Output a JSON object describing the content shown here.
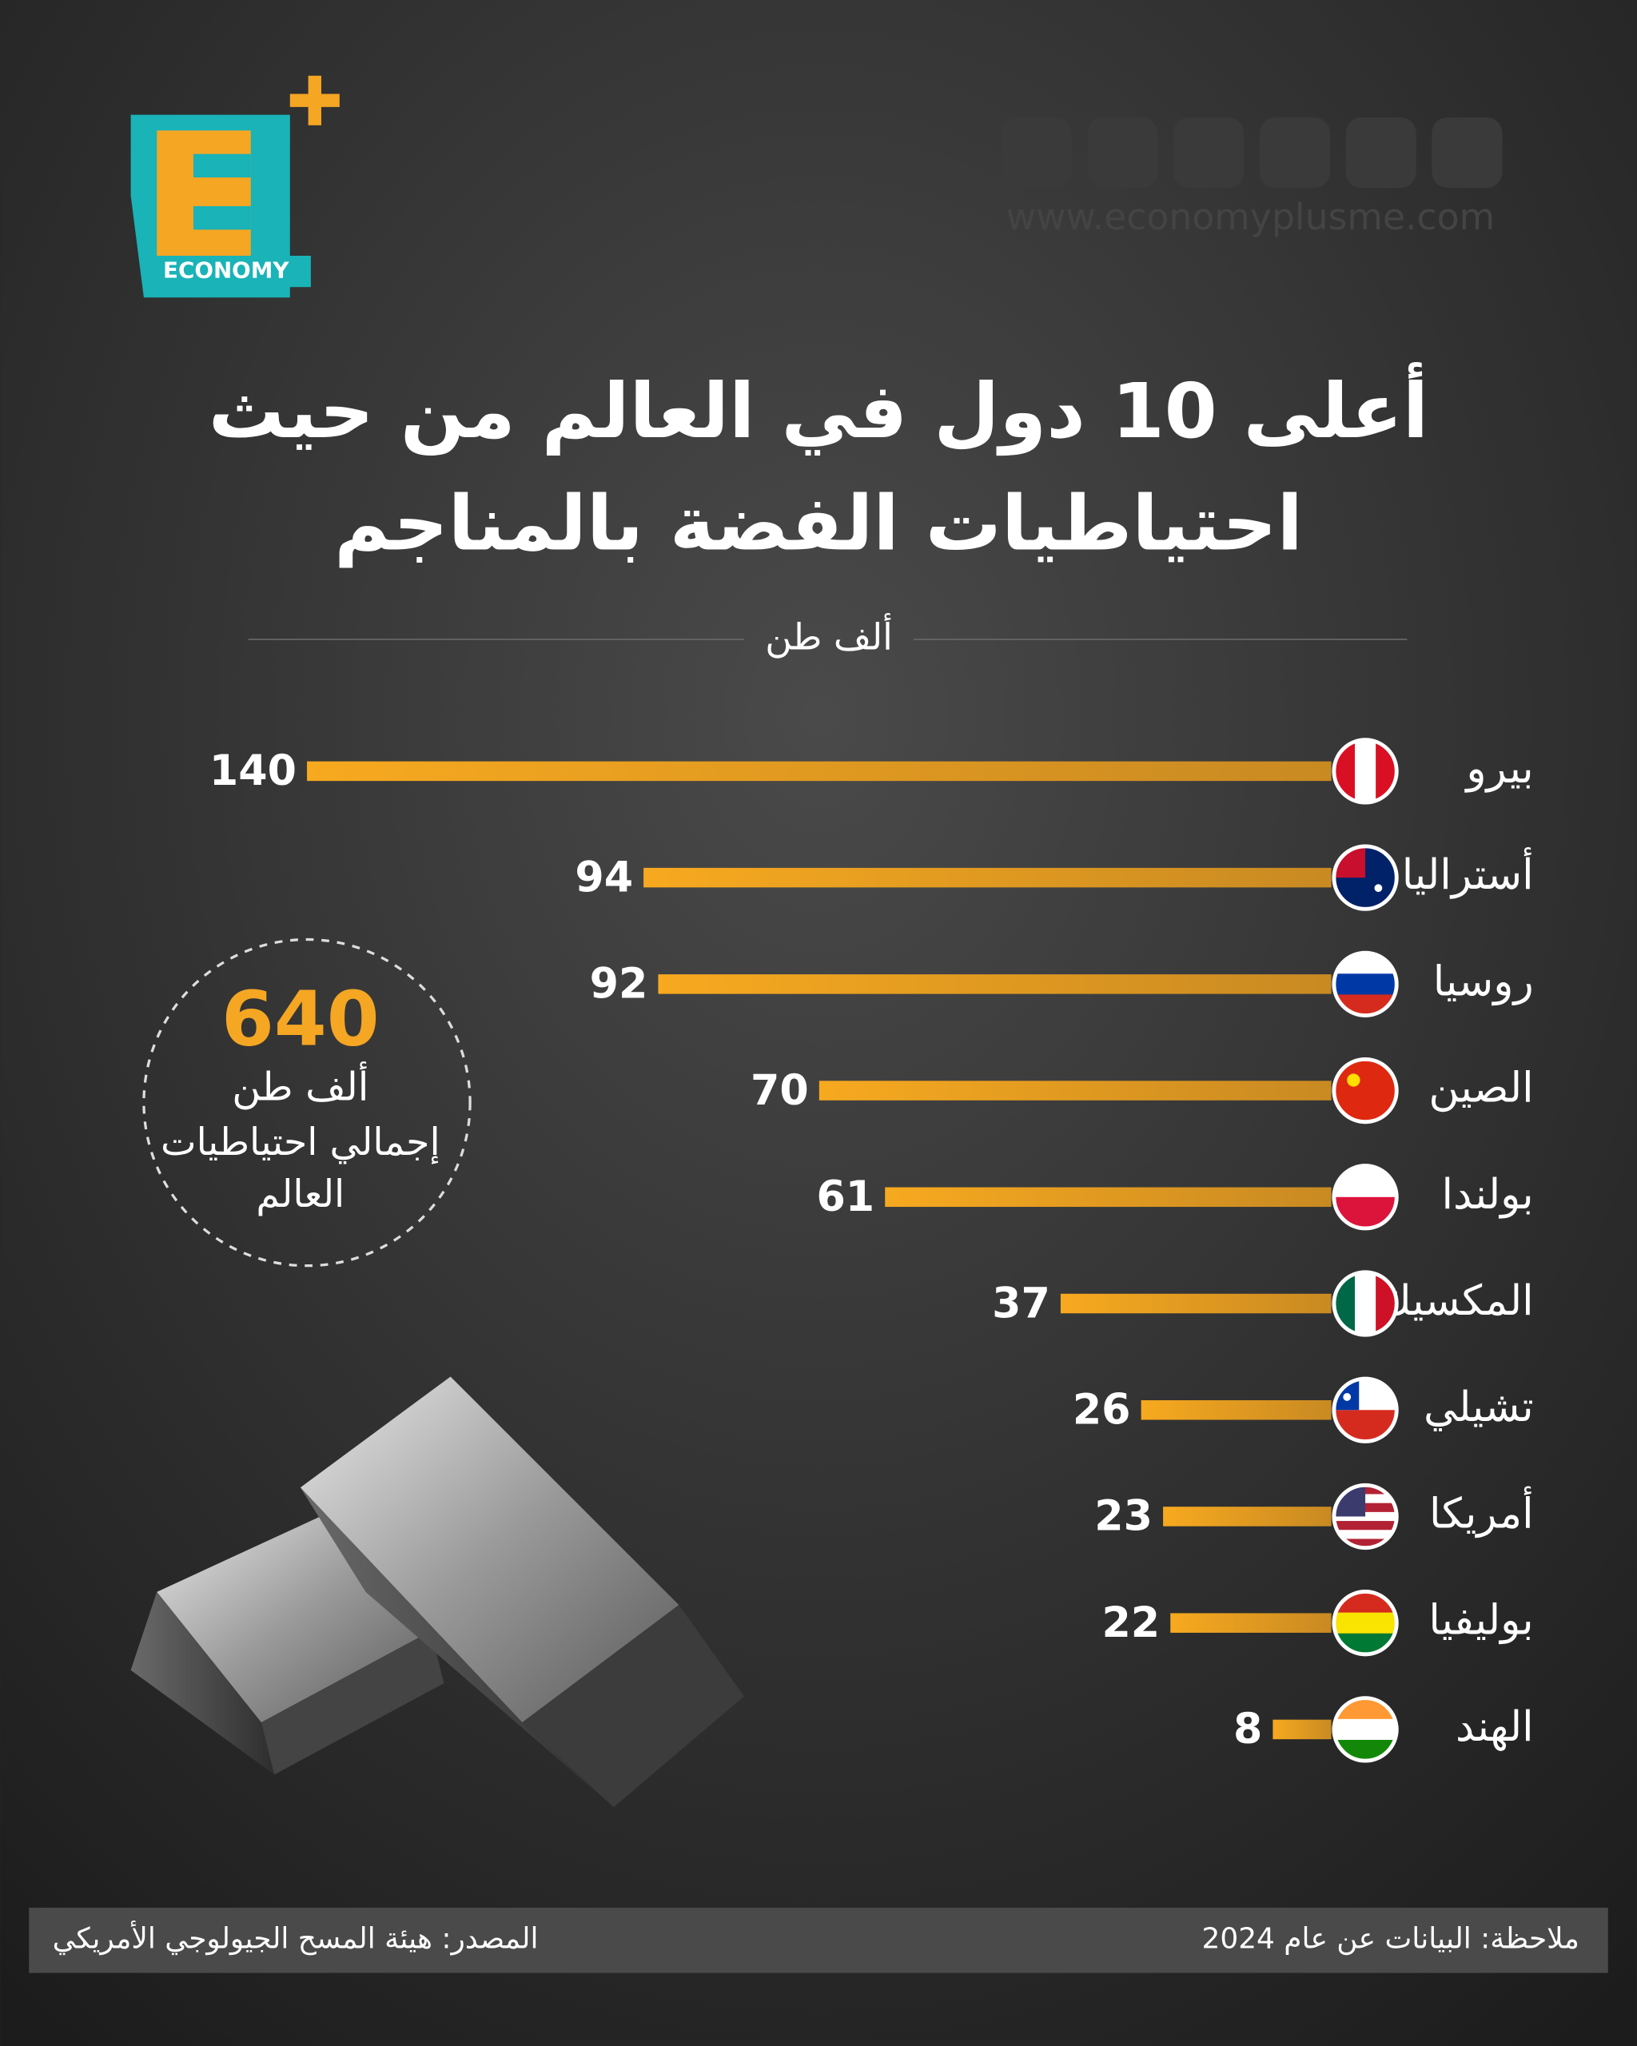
{
  "logo": {
    "text": "ECONOMY"
  },
  "website": "www.economyplusme.com",
  "chart_data": {
    "type": "bar",
    "orientation": "horizontal",
    "title": "أعلى 10 دول في العالم من حيث احتياطيات الفضة بالمناجم",
    "subtitle": "ألف طن",
    "categories": [
      "بيرو",
      "أستراليا",
      "روسيا",
      "الصين",
      "بولندا",
      "المكسيك",
      "تشيلي",
      "أمريكا",
      "بوليفيا",
      "الهند"
    ],
    "values": [
      140,
      94,
      92,
      70,
      61,
      37,
      26,
      23,
      22,
      8
    ],
    "color": "#f5a623"
  },
  "total": {
    "value": 640,
    "unit": "ألف طن",
    "label": "إجمالي احتياطيات العالم"
  },
  "footer": {
    "note": "ملاحظة: البيانات عن عام 2024",
    "source": "المصدر: هيئة المسح الجيولوجي الأمريكي"
  }
}
